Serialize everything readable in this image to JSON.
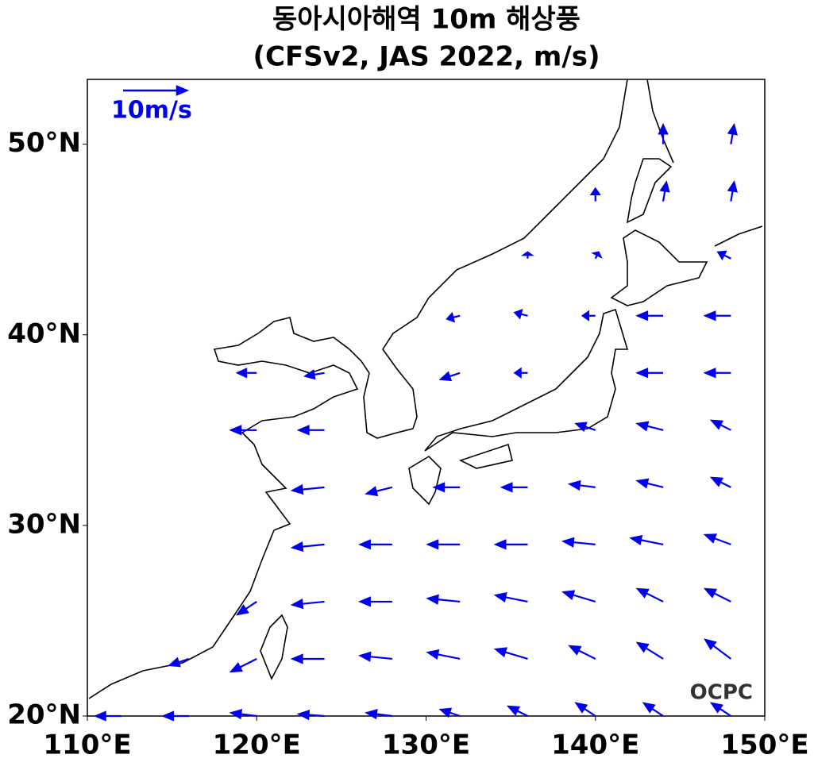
{
  "chart_data": {
    "type": "quiver",
    "title": "동아시아해역 10m 해상풍",
    "subtitle": "(CFSv2, JAS 2022, m/s)",
    "xlim": [
      110,
      150
    ],
    "ylim": [
      20,
      53.4
    ],
    "xticks": [
      {
        "value": 110,
        "label": "110°E"
      },
      {
        "value": 120,
        "label": "120°E"
      },
      {
        "value": 130,
        "label": "130°E"
      },
      {
        "value": 140,
        "label": "140°E"
      },
      {
        "value": 150,
        "label": "150°E"
      }
    ],
    "yticks": [
      {
        "value": 20,
        "label": "20°N"
      },
      {
        "value": 30,
        "label": "30°N"
      },
      {
        "value": 40,
        "label": "40°N"
      },
      {
        "value": 50,
        "label": "50°N"
      }
    ],
    "color": "#0000ee",
    "reference": {
      "label": "10m/s",
      "speed": 10
    },
    "watermark": "OCPC",
    "lons": [
      112,
      116,
      120,
      124,
      128,
      132,
      136,
      140,
      144,
      148
    ],
    "lats": [
      20,
      23,
      26,
      29,
      32,
      35,
      38,
      41,
      44,
      47,
      50
    ],
    "u": [
      [
        -4,
        -4,
        -4,
        -4,
        -4,
        -3,
        -3,
        -3,
        -3,
        -3
      ],
      [
        null,
        -3,
        -4,
        -5,
        -5,
        -5,
        -5,
        -4,
        -4,
        -4
      ],
      [
        null,
        null,
        -3,
        -5,
        -5,
        -5,
        -5,
        -5,
        -4,
        -4
      ],
      [
        null,
        null,
        null,
        -5,
        -5,
        -5,
        -5,
        -5,
        -5,
        -4
      ],
      [
        null,
        null,
        null,
        -5,
        -4,
        -4,
        -4,
        -4,
        -4,
        -3
      ],
      [
        null,
        null,
        -4,
        -4,
        null,
        null,
        null,
        -3,
        -4,
        -3
      ],
      [
        null,
        null,
        -3,
        -3,
        null,
        -3,
        -2,
        null,
        -4,
        -4
      ],
      [
        null,
        null,
        null,
        null,
        null,
        -2,
        -2,
        -2,
        -4,
        -4
      ],
      [
        null,
        null,
        null,
        null,
        null,
        null,
        0,
        0.5,
        null,
        -2
      ],
      [
        null,
        null,
        null,
        null,
        null,
        null,
        null,
        0,
        0.5,
        0.5
      ],
      [
        null,
        null,
        null,
        null,
        null,
        null,
        null,
        null,
        0,
        0.5
      ]
    ],
    "v": [
      [
        0,
        0,
        0.5,
        0.3,
        0.5,
        1,
        1.5,
        2,
        2,
        2
      ],
      [
        null,
        -1,
        -2,
        0,
        0.5,
        1,
        1.5,
        2,
        2.5,
        3
      ],
      [
        null,
        null,
        -2,
        -0.5,
        0,
        0.5,
        1,
        1.5,
        2,
        2
      ],
      [
        null,
        null,
        null,
        -0.5,
        0,
        0,
        0,
        0.5,
        1,
        1.5
      ],
      [
        null,
        null,
        null,
        -0.5,
        -1,
        0,
        0,
        0.5,
        1,
        1.5
      ],
      [
        null,
        null,
        0,
        0,
        null,
        null,
        null,
        1,
        1,
        1.5
      ],
      [
        null,
        null,
        0,
        -0.5,
        null,
        -1,
        0,
        null,
        0,
        0
      ],
      [
        null,
        null,
        null,
        null,
        null,
        -0.5,
        0.5,
        0,
        0,
        0
      ],
      [
        null,
        null,
        null,
        null,
        null,
        null,
        1,
        1,
        null,
        1
      ],
      [
        null,
        null,
        null,
        null,
        null,
        null,
        null,
        2,
        3,
        3
      ],
      [
        null,
        null,
        null,
        null,
        null,
        null,
        null,
        null,
        3,
        3
      ]
    ]
  }
}
